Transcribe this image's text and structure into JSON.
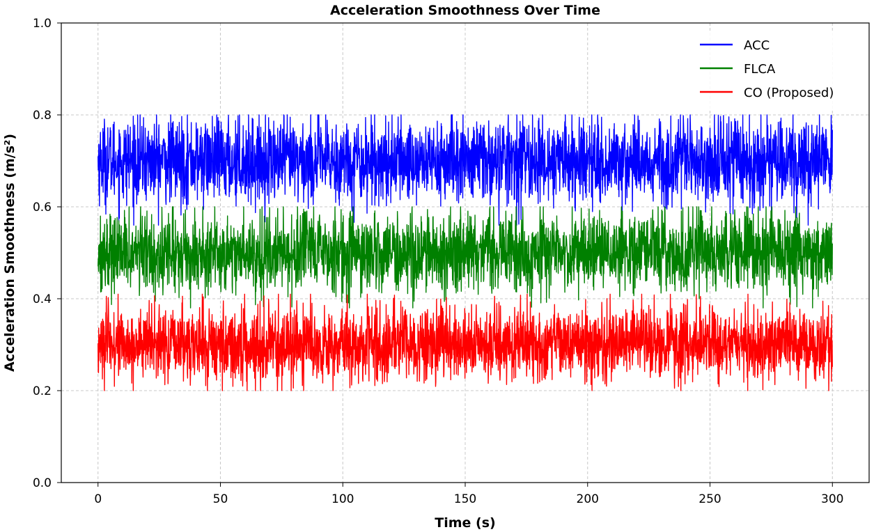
{
  "chart_data": {
    "type": "line",
    "title": "Acceleration Smoothness Over Time",
    "xlabel": "Time (s)",
    "ylabel": "Acceleration Smoothness (m/s²)",
    "xlim": [
      -15,
      315
    ],
    "ylim": [
      0.0,
      1.0
    ],
    "xticks": [
      0,
      50,
      100,
      150,
      200,
      250,
      300
    ],
    "yticks": [
      0.0,
      0.2,
      0.4,
      0.6,
      0.8,
      1.0
    ],
    "xtick_labels": [
      "0",
      "50",
      "100",
      "150",
      "200",
      "250",
      "300"
    ],
    "ytick_labels": [
      "0.0",
      "0.2",
      "0.4",
      "0.6",
      "0.8",
      "1.0"
    ],
    "grid": true,
    "legend_position": "upper-right",
    "series": [
      {
        "name": "ACC",
        "color": "#0000ff",
        "mean": 0.7,
        "min": 0.56,
        "max": 0.8,
        "x_range": [
          0,
          300
        ]
      },
      {
        "name": "FLCA",
        "color": "#008000",
        "mean": 0.5,
        "min": 0.38,
        "max": 0.6,
        "x_range": [
          0,
          300
        ]
      },
      {
        "name": "CO (Proposed)",
        "color": "#ff0000",
        "mean": 0.3,
        "min": 0.2,
        "max": 0.41,
        "x_range": [
          0,
          300
        ]
      }
    ]
  }
}
